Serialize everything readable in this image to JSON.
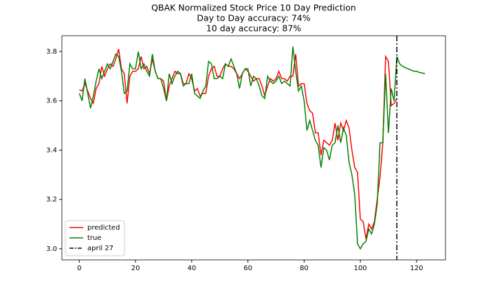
{
  "chart_data": {
    "type": "line",
    "title": "QBAK Normalized Stock Price 10 Day Prediction",
    "subtitles": [
      "Day to Day accuracy: 74%",
      "10 day accuracy: 87%"
    ],
    "x": [
      0,
      1,
      2,
      3,
      4,
      5,
      6,
      7,
      8,
      9,
      10,
      11,
      12,
      13,
      14,
      15,
      16,
      17,
      18,
      19,
      20,
      21,
      22,
      23,
      24,
      25,
      26,
      27,
      28,
      29,
      30,
      31,
      32,
      33,
      34,
      35,
      36,
      37,
      38,
      39,
      40,
      41,
      42,
      43,
      44,
      45,
      46,
      47,
      48,
      49,
      50,
      51,
      52,
      53,
      54,
      55,
      56,
      57,
      58,
      59,
      60,
      61,
      62,
      63,
      64,
      65,
      66,
      67,
      68,
      69,
      70,
      71,
      72,
      73,
      74,
      75,
      76,
      77,
      78,
      79,
      80,
      81,
      82,
      83,
      84,
      85,
      86,
      87,
      88,
      89,
      90,
      91,
      92,
      93,
      94,
      95,
      96,
      97,
      98,
      99,
      100,
      101,
      102,
      103,
      104,
      105,
      106,
      107,
      108,
      109,
      110,
      111,
      112,
      113,
      114,
      115,
      116,
      117,
      118,
      119,
      120,
      121,
      122,
      123
    ],
    "series": [
      {
        "name": "predicted",
        "color": "#ff0000",
        "values": [
          3.645,
          3.64,
          3.67,
          3.64,
          3.61,
          3.59,
          3.65,
          3.67,
          3.74,
          3.7,
          3.73,
          3.75,
          3.74,
          3.77,
          3.81,
          3.73,
          3.71,
          3.59,
          3.7,
          3.72,
          3.72,
          3.73,
          3.78,
          3.73,
          3.74,
          3.71,
          3.77,
          3.72,
          3.69,
          3.69,
          3.68,
          3.6,
          3.66,
          3.69,
          3.72,
          3.71,
          3.71,
          3.67,
          3.67,
          3.71,
          3.69,
          3.64,
          3.65,
          3.62,
          3.63,
          3.63,
          3.7,
          3.73,
          3.74,
          3.7,
          3.7,
          3.73,
          3.75,
          3.74,
          3.74,
          3.73,
          3.71,
          3.69,
          3.71,
          3.73,
          3.72,
          3.7,
          3.68,
          3.69,
          3.69,
          3.66,
          3.62,
          3.66,
          3.69,
          3.68,
          3.69,
          3.72,
          3.69,
          3.69,
          3.68,
          3.7,
          3.7,
          3.79,
          3.66,
          3.67,
          3.67,
          3.59,
          3.56,
          3.55,
          3.47,
          3.47,
          3.38,
          3.44,
          3.43,
          3.42,
          3.44,
          3.51,
          3.44,
          3.51,
          3.48,
          3.52,
          3.49,
          3.4,
          3.33,
          3.31,
          3.12,
          3.11,
          3.04,
          3.1,
          3.08,
          3.11,
          3.2,
          3.29,
          3.43,
          3.78,
          3.76,
          3.58,
          3.59,
          3.61,
          null,
          null,
          null,
          null,
          null,
          null,
          null,
          null,
          null,
          null
        ]
      },
      {
        "name": "true",
        "color": "#008000",
        "values": [
          3.63,
          3.6,
          3.69,
          3.63,
          3.57,
          3.62,
          3.68,
          3.73,
          3.69,
          3.72,
          3.75,
          3.73,
          3.76,
          3.79,
          3.78,
          3.72,
          3.63,
          3.64,
          3.75,
          3.73,
          3.73,
          3.8,
          3.73,
          3.75,
          3.72,
          3.7,
          3.79,
          3.72,
          3.69,
          3.69,
          3.65,
          3.6,
          3.71,
          3.67,
          3.7,
          3.72,
          3.71,
          3.66,
          3.67,
          3.67,
          3.71,
          3.63,
          3.62,
          3.61,
          3.64,
          3.66,
          3.76,
          3.75,
          3.69,
          3.69,
          3.7,
          3.69,
          3.75,
          3.74,
          3.77,
          3.74,
          3.71,
          3.65,
          3.71,
          3.73,
          3.73,
          3.66,
          3.7,
          3.69,
          3.66,
          3.62,
          3.61,
          3.7,
          3.68,
          3.67,
          3.68,
          3.7,
          3.67,
          3.68,
          3.67,
          3.66,
          3.82,
          3.72,
          3.64,
          3.66,
          3.6,
          3.48,
          3.52,
          3.48,
          3.44,
          3.42,
          3.33,
          3.41,
          3.4,
          3.36,
          3.42,
          3.43,
          3.5,
          3.43,
          3.49,
          3.46,
          3.35,
          3.3,
          3.22,
          3.02,
          3.0,
          3.02,
          3.03,
          3.08,
          3.06,
          3.1,
          3.18,
          3.43,
          3.43,
          3.71,
          3.47,
          3.65,
          3.6,
          3.78,
          3.75,
          3.74,
          3.735,
          3.73,
          3.725,
          3.72,
          3.72,
          3.715,
          3.713,
          3.71
        ]
      }
    ],
    "vlines": [
      {
        "name": "april 27",
        "x": 113,
        "color": "#000000"
      }
    ],
    "xlim": [
      -6.2,
      130.3
    ],
    "ylim": [
      2.955,
      3.864
    ],
    "xticks": [
      0,
      20,
      40,
      60,
      80,
      100,
      120
    ],
    "yticks": [
      {
        "value": 3,
        "label": "3.0"
      },
      3.2,
      3.4,
      3.6,
      3.8
    ],
    "grid": false,
    "legend": "lower left"
  }
}
